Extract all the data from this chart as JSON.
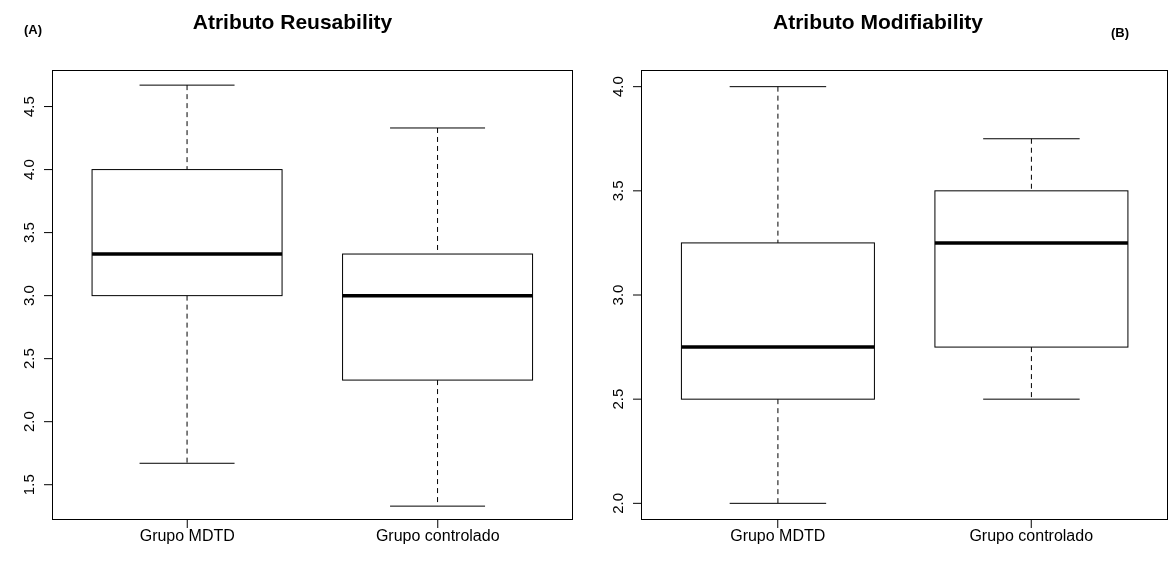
{
  "chart_data": [
    {
      "type": "box",
      "title": "Atributo Reusability",
      "annotations": [
        "(A)"
      ],
      "categories": [
        "Grupo MDTD",
        "Grupo controlado"
      ],
      "boxes": [
        {
          "low": 1.67,
          "q1": 3.0,
          "median": 3.33,
          "q3": 4.0,
          "high": 4.67
        },
        {
          "low": 1.33,
          "q1": 2.33,
          "median": 3.0,
          "q3": 3.33,
          "high": 4.33
        }
      ],
      "ylim": [
        1.22,
        4.79
      ],
      "yticks": [
        1.5,
        {
          "value": 2,
          "label": "2.0"
        },
        2.5,
        {
          "value": 3,
          "label": "3.0"
        },
        3.5,
        {
          "value": 4,
          "label": "4.0"
        },
        4.5
      ]
    },
    {
      "type": "box",
      "title": "Atributo Modifiability",
      "annotations": [
        "(B)"
      ],
      "categories": [
        "Grupo MDTD",
        "Grupo controlado"
      ],
      "boxes": [
        {
          "low": 2.0,
          "q1": 2.5,
          "median": 2.75,
          "q3": 3.25,
          "high": 4.0
        },
        {
          "low": 2.5,
          "q1": 2.75,
          "median": 3.25,
          "q3": 3.5,
          "high": 3.75
        }
      ],
      "ylim": [
        1.92,
        4.08
      ],
      "yticks": [
        {
          "value": 2,
          "label": "2.0"
        },
        2.5,
        {
          "value": 3,
          "label": "3.0"
        },
        3.5,
        {
          "value": 4,
          "label": "4.0"
        }
      ]
    }
  ]
}
